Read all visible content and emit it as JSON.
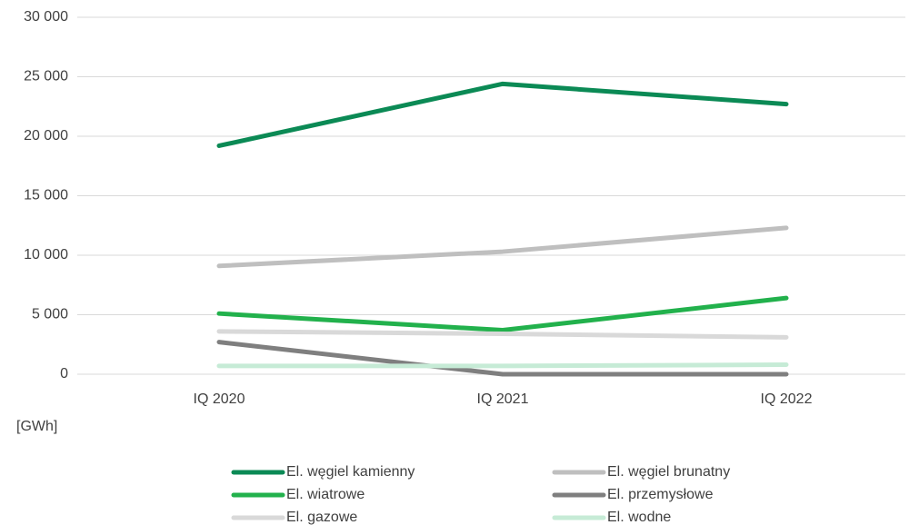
{
  "chart_data": {
    "type": "line",
    "y_label": "[GWh]",
    "categories": [
      "IQ 2020",
      "IQ 2021",
      "IQ 2022"
    ],
    "series": [
      {
        "name": "El. węgiel kamienny",
        "color": "#0b8a55",
        "values": [
          19200,
          24400,
          22700
        ]
      },
      {
        "name": "El. węgiel brunatny",
        "color": "#bfbfbf",
        "values": [
          9100,
          10300,
          12300
        ]
      },
      {
        "name": "El. wiatrowe",
        "color": "#22b14c",
        "values": [
          5100,
          3700,
          6400
        ]
      },
      {
        "name": "El. przemysłowe",
        "color": "#7f7f7f",
        "values": [
          2700,
          0,
          0
        ]
      },
      {
        "name": "El. gazowe",
        "color": "#d9d9d9",
        "values": [
          3600,
          3400,
          3100
        ]
      },
      {
        "name": "El. wodne",
        "color": "#c6ebd6",
        "values": [
          700,
          700,
          800
        ]
      }
    ],
    "ylim": [
      0,
      30000
    ],
    "yticks": [
      0,
      {
        "value": 5000,
        "label": "5 000"
      },
      {
        "value": 10000,
        "label": "10 000"
      },
      {
        "value": 15000,
        "label": "15 000"
      },
      {
        "value": 20000,
        "label": "20 000"
      },
      {
        "value": 25000,
        "label": "25 000"
      },
      {
        "value": 30000,
        "label": "30 000"
      }
    ],
    "grid": true,
    "legend": "bottom"
  }
}
